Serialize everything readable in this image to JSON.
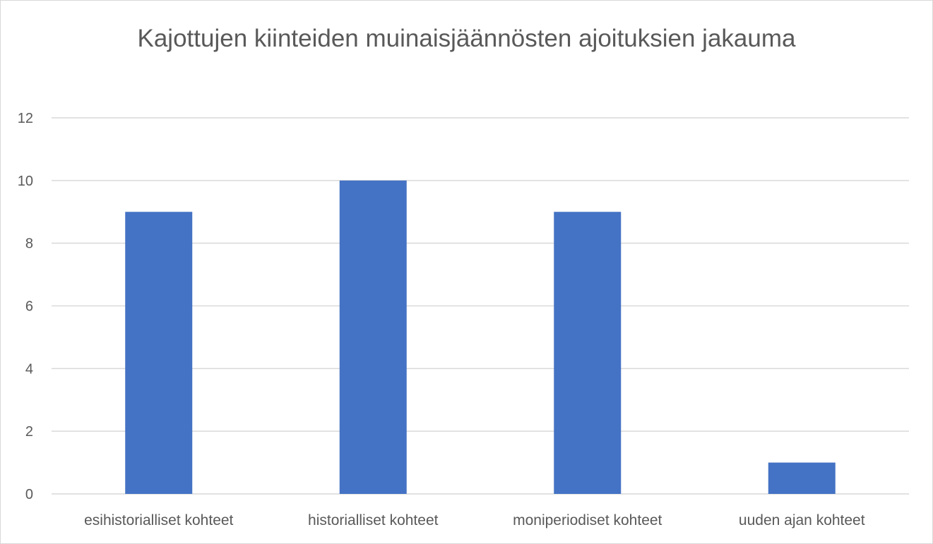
{
  "chart_data": {
    "type": "bar",
    "title": "Kajottujen kiinteiden muinaisjäännösten ajoituksien jakauma",
    "categories": [
      "esihistorialliset kohteet",
      "historialliset kohteet",
      "moniperiodiset kohteet",
      "uuden ajan kohteet"
    ],
    "values": [
      9,
      10,
      9,
      1
    ],
    "ylim": [
      0,
      12
    ],
    "yticks": [
      0,
      2,
      4,
      6,
      8,
      10,
      12
    ],
    "grid": true,
    "legend": "none",
    "bar_color": "#4472c4",
    "grid_color": "#d9d9d9",
    "text_color": "#595959"
  }
}
